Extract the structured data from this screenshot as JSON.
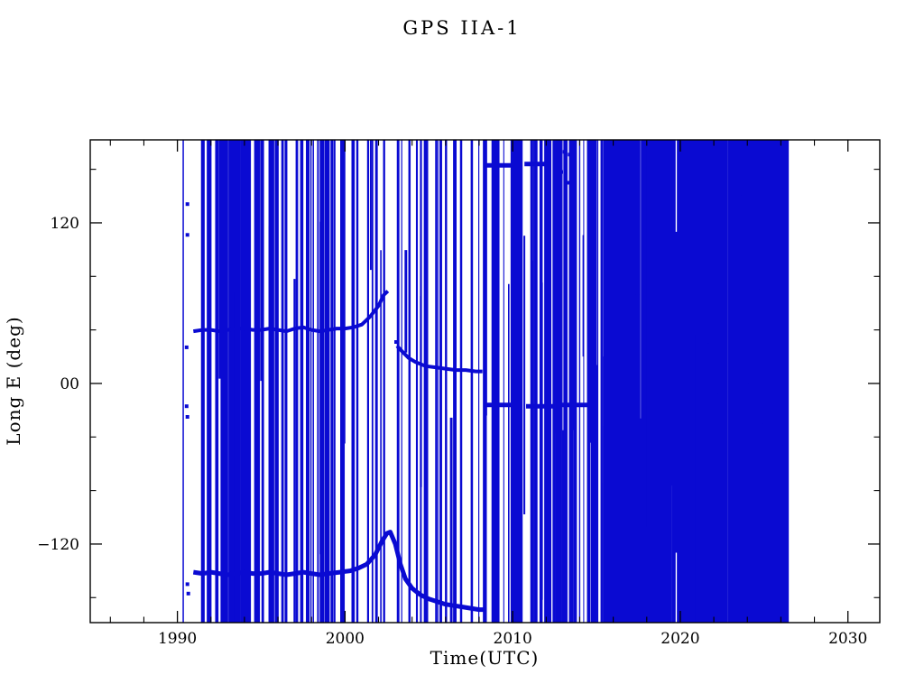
{
  "chart_data": {
    "type": "scatter",
    "title": "GPS IIA-1",
    "xlabel": "Time(UTC)",
    "ylabel": "Long E (deg)",
    "xlim": [
      1984.8,
      2031.9
    ],
    "ylim": [
      -178.7,
      182.0
    ],
    "x_ticks": [
      {
        "v": 1990,
        "label": "1990"
      },
      {
        "v": 2000,
        "label": "2000"
      },
      {
        "v": 2010,
        "label": "2010"
      },
      {
        "v": 2020,
        "label": "2020"
      },
      {
        "v": 2030,
        "label": "2030"
      }
    ],
    "x_minor_step": 2,
    "y_ticks": [
      {
        "v": 120,
        "label": "120"
      },
      {
        "v": 0,
        "label": "00"
      },
      {
        "v": -120,
        "label": "−120"
      }
    ],
    "y_minor_step": 40,
    "grid": false,
    "legend": false,
    "line_color": "#0a0ad2",
    "axis_color": "#000000",
    "series": [
      {
        "name": "longitude-track-1991-2002",
        "width": 4,
        "points": [
          [
            1990.95,
            39
          ],
          [
            1991.5,
            40
          ],
          [
            1992,
            40
          ],
          [
            1992.5,
            39
          ],
          [
            1993,
            40
          ],
          [
            1993.5,
            41
          ],
          [
            1994,
            41
          ],
          [
            1994.5,
            40
          ],
          [
            1995,
            40
          ],
          [
            1995.5,
            41
          ],
          [
            1996,
            40
          ],
          [
            1996.5,
            39
          ],
          [
            1997,
            41
          ],
          [
            1997.5,
            42
          ],
          [
            1998,
            40
          ],
          [
            1998.5,
            39
          ],
          [
            1999,
            40
          ],
          [
            1999.5,
            41
          ],
          [
            2000,
            41
          ],
          [
            2000.5,
            42
          ],
          [
            2001,
            44
          ],
          [
            2001.5,
            50
          ],
          [
            2002,
            58
          ],
          [
            2002.3,
            66
          ],
          [
            2002.55,
            69
          ]
        ]
      },
      {
        "name": "longitude-track-2003-2008",
        "width": 4,
        "points": [
          [
            2003.1,
            28
          ],
          [
            2003.4,
            24
          ],
          [
            2003.8,
            19
          ],
          [
            2004.2,
            16
          ],
          [
            2004.8,
            13
          ],
          [
            2005.4,
            12
          ],
          [
            2006.0,
            11
          ],
          [
            2006.6,
            10
          ],
          [
            2007.2,
            10
          ],
          [
            2007.8,
            9
          ],
          [
            2008.2,
            9
          ]
        ]
      },
      {
        "name": "band-minus16-a",
        "width": 5,
        "points": [
          [
            2008.3,
            -16
          ],
          [
            2010.5,
            -16
          ]
        ]
      },
      {
        "name": "band-minus16-b",
        "width": 5,
        "points": [
          [
            2010.8,
            -17
          ],
          [
            2012.5,
            -17
          ]
        ]
      },
      {
        "name": "band-minus16-c",
        "width": 5,
        "points": [
          [
            2012.9,
            -16
          ],
          [
            2014.9,
            -16
          ]
        ]
      },
      {
        "name": "band-163-a",
        "width": 5,
        "points": [
          [
            2008.3,
            163
          ],
          [
            2010.4,
            163
          ]
        ]
      },
      {
        "name": "band-163-b",
        "width": 5,
        "points": [
          [
            2010.7,
            164
          ],
          [
            2012.3,
            164
          ]
        ]
      },
      {
        "name": "bottom-track",
        "width": 5,
        "points": [
          [
            1990.95,
            -141
          ],
          [
            1991.5,
            -142
          ],
          [
            1992,
            -141
          ],
          [
            1992.5,
            -142
          ],
          [
            1993,
            -143
          ],
          [
            1993.5,
            -142
          ],
          [
            1994,
            -141
          ],
          [
            1994.5,
            -142
          ],
          [
            1995,
            -142
          ],
          [
            1995.5,
            -141
          ],
          [
            1996,
            -142
          ],
          [
            1996.5,
            -143
          ],
          [
            1997,
            -142
          ],
          [
            1997.5,
            -141
          ],
          [
            1998,
            -142
          ],
          [
            1998.5,
            -143
          ],
          [
            1999,
            -142
          ],
          [
            1999.7,
            -141
          ],
          [
            2000.3,
            -140
          ],
          [
            2000.8,
            -138
          ],
          [
            2001.3,
            -135
          ],
          [
            2001.8,
            -128
          ],
          [
            2002.2,
            -118
          ],
          [
            2002.5,
            -112
          ],
          [
            2002.7,
            -111
          ],
          [
            2003.0,
            -120
          ],
          [
            2003.3,
            -135
          ],
          [
            2003.6,
            -146
          ],
          [
            2004.0,
            -153
          ],
          [
            2004.5,
            -158
          ],
          [
            2005.0,
            -161
          ],
          [
            2005.5,
            -163
          ],
          [
            2006.0,
            -165
          ],
          [
            2006.5,
            -166
          ],
          [
            2007.0,
            -167
          ],
          [
            2007.5,
            -168
          ],
          [
            2008.0,
            -169
          ],
          [
            2008.3,
            -169
          ]
        ]
      }
    ],
    "points": [
      {
        "x": 1990.6,
        "y": 134
      },
      {
        "x": 1990.6,
        "y": 111
      },
      {
        "x": 1990.55,
        "y": 27
      },
      {
        "x": 1990.55,
        "y": -17
      },
      {
        "x": 1990.6,
        "y": -25
      },
      {
        "x": 1990.6,
        "y": -150
      },
      {
        "x": 1990.65,
        "y": -157
      },
      {
        "x": 2012.7,
        "y": 172
      },
      {
        "x": 2013.1,
        "y": 173
      },
      {
        "x": 2013.4,
        "y": 171
      },
      {
        "x": 2012.9,
        "y": 158
      },
      {
        "x": 2013.3,
        "y": 150
      },
      {
        "x": 2003.05,
        "y": 31
      }
    ],
    "vertical_bands": [
      {
        "from": 1990.3,
        "to": 1990.4,
        "count": 2,
        "width": [
          1,
          1
        ],
        "partial": 0
      },
      {
        "from": 1990.95,
        "to": 1995.2,
        "count": 46,
        "width": [
          1,
          4
        ],
        "partial": 0.1
      },
      {
        "from": 1995.2,
        "to": 2000.3,
        "count": 34,
        "width": [
          1,
          4
        ],
        "partial": 0.1
      },
      {
        "from": 2000.3,
        "to": 2003.2,
        "count": 13,
        "width": [
          1,
          3
        ],
        "partial": 0.1
      },
      {
        "from": 2003.2,
        "to": 2008.2,
        "count": 20,
        "width": [
          1,
          3
        ],
        "partial": 0.15
      },
      {
        "from": 2008.2,
        "to": 2013.8,
        "count": 58,
        "width": [
          1,
          4
        ],
        "partial": 0.3
      },
      {
        "from": 2013.9,
        "to": 2014.5,
        "count": 3,
        "width": [
          1,
          2
        ],
        "partial": 0.3
      },
      {
        "from": 2014.5,
        "to": 2016.0,
        "count": 30,
        "width": [
          1,
          4
        ],
        "partial": 0.3
      },
      {
        "from": 2016.0,
        "to": 2026.35,
        "count": 290,
        "width": [
          1,
          5
        ],
        "partial": 0.25
      }
    ]
  }
}
